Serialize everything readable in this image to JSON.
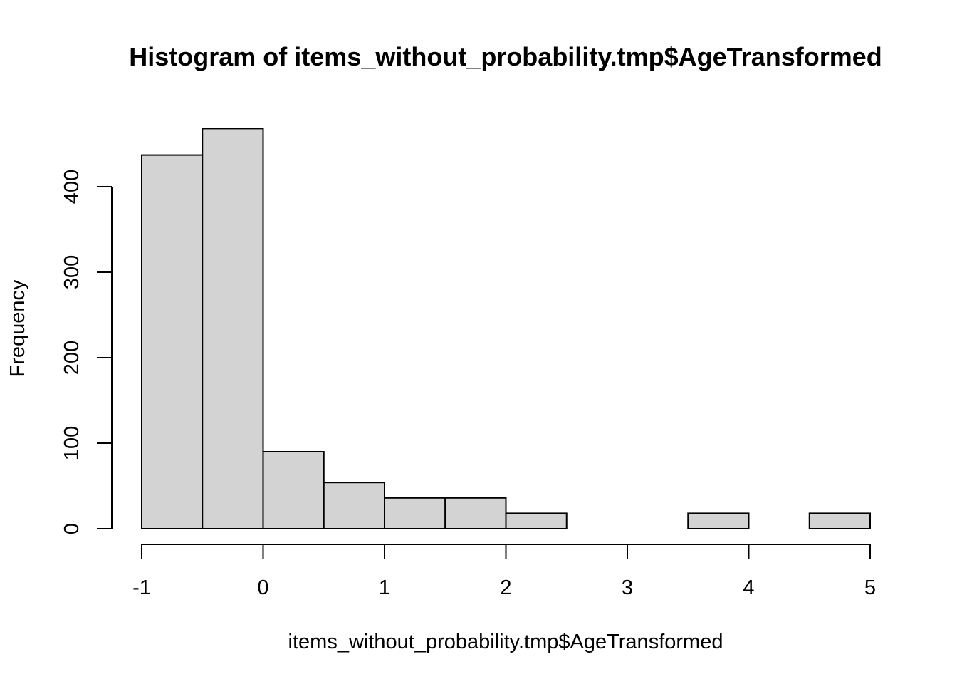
{
  "chart_data": {
    "type": "bar",
    "title": "Histogram of items_without_probability.tmp$AgeTransformed",
    "xlabel": "items_without_probability.tmp$AgeTransformed",
    "ylabel": "Frequency",
    "bin_edges": [
      -1,
      -0.5,
      0,
      0.5,
      1,
      1.5,
      2,
      2.5,
      3,
      3.5,
      4,
      4.5,
      5
    ],
    "values": [
      437,
      468,
      90,
      54,
      36,
      36,
      18,
      0,
      0,
      18,
      0,
      18
    ],
    "xlim": [
      -1,
      5
    ],
    "ylim": [
      0,
      468
    ],
    "x_ticks": [
      -1,
      0,
      1,
      2,
      3,
      4,
      5
    ],
    "x_tick_labels": [
      "-1",
      "0",
      "1",
      "2",
      "3",
      "4",
      "5"
    ],
    "y_ticks": [
      0,
      100,
      200,
      300,
      400
    ],
    "y_tick_labels": [
      "0",
      "100",
      "200",
      "300",
      "400"
    ],
    "bar_fill": "#d3d3d3",
    "bar_stroke": "#000000",
    "grid": false,
    "legend": "none"
  }
}
